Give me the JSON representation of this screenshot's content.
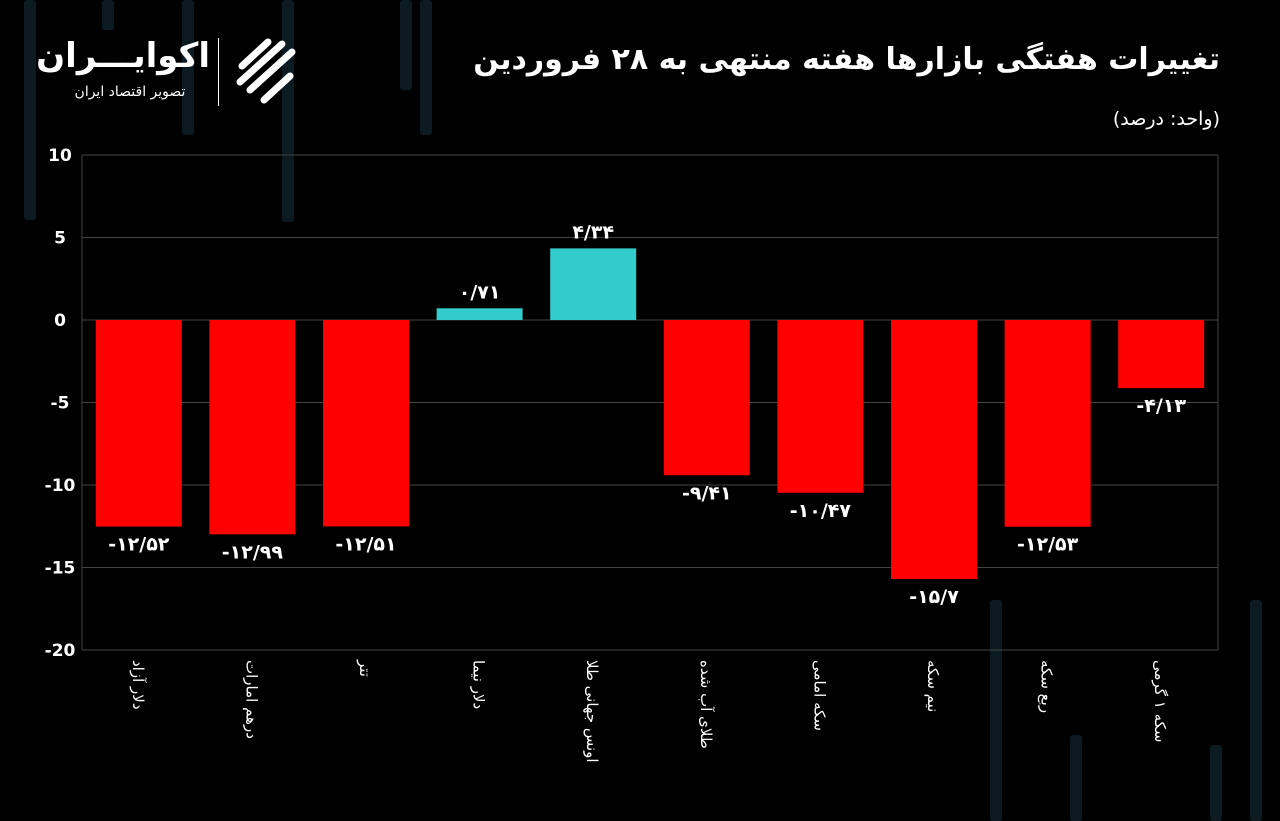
{
  "title": "تغییرات هفتگی بازارها هفته منتهی به ۲۸ فروردین",
  "unit": "(واحد: درصد)",
  "logo": {
    "name": "اکوایـــران",
    "subtitle": "تصویر اقتصاد ایران"
  },
  "colors": {
    "negative": "#ff0000",
    "positive": "#33cccc",
    "grid": "#444444",
    "background": "#000000"
  },
  "chart_data": {
    "type": "bar",
    "title": "تغییرات هفتگی بازارها هفته منتهی به ۲۸ فروردین",
    "ylabel": "(واحد: درصد)",
    "ylim": [
      -20,
      10
    ],
    "yticks": [
      10,
      5,
      0,
      -5,
      -10,
      -15,
      -20
    ],
    "grid": true,
    "categories": [
      "دلار آزاد",
      "درهم امارات",
      "تتر",
      "دلار نیما",
      "اونس جهانی طلا",
      "طلای آب شده",
      "سکه امامی",
      "نیم سکه",
      "ربع سکه",
      "سکه ۱ گرمی"
    ],
    "values": [
      -12.52,
      -12.99,
      -12.51,
      0.71,
      4.34,
      -9.41,
      -10.47,
      -15.7,
      -12.53,
      -4.13
    ],
    "data_labels": [
      "-۱۲/۵۲",
      "-۱۲/۹۹",
      "-۱۲/۵۱",
      "۰/۷۱",
      "۴/۳۴",
      "-۹/۴۱",
      "-۱۰/۴۷",
      "-۱۵/۷",
      "-۱۲/۵۳",
      "-۴/۱۳"
    ]
  }
}
